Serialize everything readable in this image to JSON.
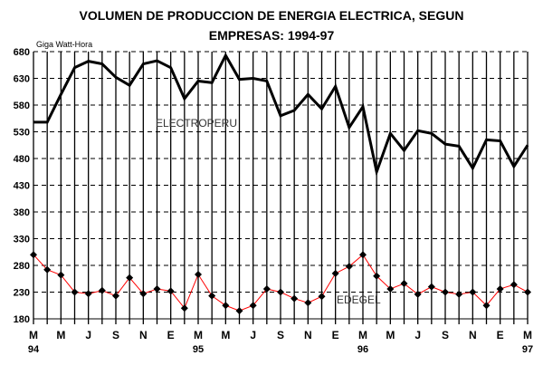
{
  "chart_data": {
    "type": "line",
    "title_line1": "VOLUMEN DE PRODUCCION DE ENERGIA ELECTRICA, SEGUN",
    "title_line2": "EMPRESAS: 1994-97",
    "ylabel": "Giga Watt-Hora",
    "ylim": [
      180,
      680
    ],
    "yticks": [
      180,
      230,
      280,
      330,
      380,
      430,
      480,
      530,
      580,
      630,
      680
    ],
    "x_tick_labels": [
      "M",
      "M",
      "J",
      "S",
      "N",
      "E",
      "M",
      "M",
      "J",
      "S",
      "N",
      "E",
      "M",
      "M",
      "J",
      "S",
      "N",
      "E",
      "M"
    ],
    "year_labels": [
      {
        "index": 0,
        "label": "94"
      },
      {
        "index": 6,
        "label": "95"
      },
      {
        "index": 12,
        "label": "96"
      },
      {
        "index": 18,
        "label": "97"
      }
    ],
    "x_period": "Monthly, Mar 1994 - Mar 1997",
    "grid": true,
    "series": [
      {
        "name": "ELECTROPERU",
        "color": "#000000",
        "values": [
          548,
          548,
          600,
          650,
          662,
          657,
          632,
          617,
          657,
          663,
          650,
          592,
          625,
          622,
          673,
          628,
          630,
          625,
          560,
          570,
          600,
          573,
          615,
          538,
          577,
          455,
          527,
          495,
          532,
          527,
          507,
          503,
          462,
          515,
          513,
          465,
          505
        ]
      },
      {
        "name": "EDEGEL",
        "color": "#ff0000",
        "values": [
          300,
          272,
          262,
          230,
          227,
          233,
          223,
          257,
          227,
          236,
          232,
          200,
          263,
          223,
          205,
          195,
          205,
          236,
          230,
          218,
          210,
          222,
          265,
          278,
          300,
          260,
          236,
          246,
          226,
          240,
          230,
          226,
          230,
          205,
          236,
          244,
          230
        ]
      }
    ]
  }
}
